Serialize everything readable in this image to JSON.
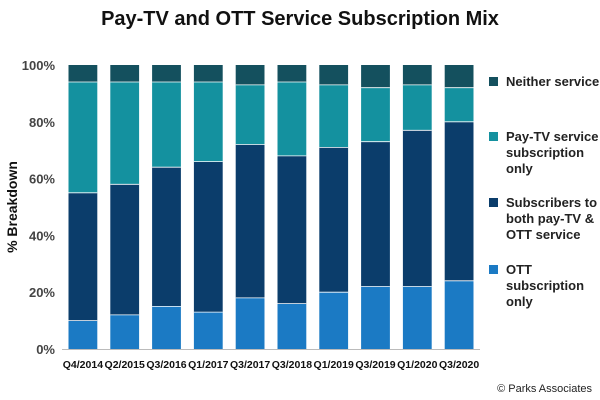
{
  "chart_data": {
    "type": "bar",
    "stacked": true,
    "title": "Pay-TV and OTT Service Subscription Mix",
    "xlabel": "",
    "ylabel": "% Breakdown",
    "ylim": [
      0,
      100
    ],
    "yticks": [
      "0%",
      "20%",
      "40%",
      "60%",
      "80%",
      "100%"
    ],
    "categories": [
      "Q4/2014",
      "Q2/2015",
      "Q3/2016",
      "Q1/2017",
      "Q3/2017",
      "Q3/2018",
      "Q1/2019",
      "Q3/2019",
      "Q1/2020",
      "Q3/2020"
    ],
    "series": [
      {
        "name": "OTT subscription only",
        "color": "#1B7AC4",
        "values": [
          10,
          12,
          15,
          13,
          18,
          16,
          20,
          22,
          22,
          24
        ]
      },
      {
        "name": "Subscribers to both pay-TV & OTT service",
        "color": "#0B3D6B",
        "values": [
          45,
          46,
          49,
          53,
          54,
          52,
          51,
          51,
          55,
          56
        ]
      },
      {
        "name": "Pay-TV service subscription only",
        "color": "#14919F",
        "values": [
          39,
          36,
          30,
          28,
          21,
          26,
          22,
          19,
          16,
          12
        ]
      },
      {
        "name": "Neither service",
        "color": "#14505E",
        "values": [
          6,
          6,
          6,
          6,
          7,
          6,
          7,
          8,
          7,
          8
        ]
      }
    ],
    "legend": [
      {
        "label": "Neither service",
        "color": "#14505E"
      },
      {
        "label": "Pay-TV service subscription only",
        "color": "#14919F"
      },
      {
        "label": "Subscribers to both pay-TV & OTT service",
        "color": "#0B3D6B"
      },
      {
        "label": "OTT subscription only",
        "color": "#1B7AC4"
      }
    ],
    "legend_position": "right",
    "grid": false
  },
  "credit": "© Parks Associates"
}
